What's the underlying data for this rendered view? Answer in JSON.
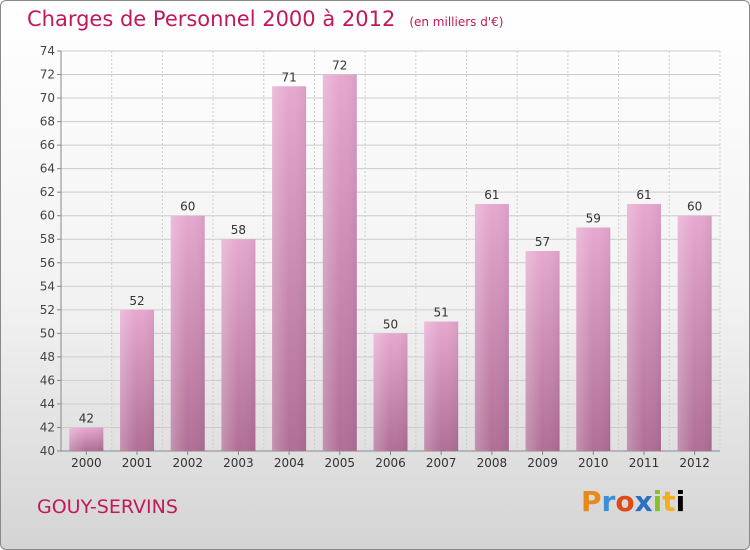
{
  "header": {
    "title": "Charges de Personnel 2000 à 2012",
    "subtitle": "(en milliers d'€)"
  },
  "footer": {
    "commune": "GOUY-SERVINS",
    "logo_letters": [
      "P",
      "r",
      "o",
      "x",
      "i",
      "t",
      "i"
    ]
  },
  "colors": {
    "title": "#c2185b",
    "bar_top": "#e6a8cf",
    "bar_bottom": "#b06e96",
    "grid": "#cccccc"
  },
  "chart_data": {
    "type": "bar",
    "title": "Charges de Personnel 2000 à 2012",
    "subtitle": "(en milliers d'€)",
    "categories": [
      "2000",
      "2001",
      "2002",
      "2003",
      "2004",
      "2005",
      "2006",
      "2007",
      "2008",
      "2009",
      "2010",
      "2011",
      "2012"
    ],
    "values": [
      42,
      52,
      60,
      58,
      71,
      72,
      50,
      51,
      61,
      57,
      59,
      61,
      60
    ],
    "ylim": [
      40,
      74
    ],
    "ytick_step": 2,
    "grid": true,
    "legend": "none"
  }
}
